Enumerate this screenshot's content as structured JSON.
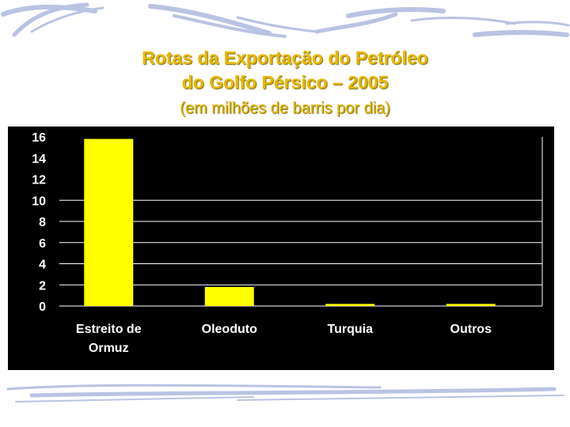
{
  "slide": {
    "title_line1": "Rotas da Exportação do Petróleo",
    "title_line2": "do Golfo Pérsico – 2005",
    "subtitle": "(em milhões de barris por dia)"
  },
  "colors": {
    "title": "#e8b800",
    "panel_background": "#000000",
    "bar": "#ffff00",
    "axis_text": "#ffffff",
    "gridline": "#ffffff",
    "decoration": "#b9c3e3"
  },
  "chart_data": {
    "type": "bar",
    "title": "",
    "xlabel": "",
    "ylabel": "",
    "categories": [
      "Estreito de Ormuz",
      "Oleoduto",
      "Turquia",
      "Outros"
    ],
    "category_lines": [
      [
        "Estreito de",
        "Ormuz"
      ],
      [
        "Oleoduto"
      ],
      [
        "Turquia"
      ],
      [
        "Outros"
      ]
    ],
    "values": [
      15.8,
      1.8,
      0.2,
      0.2
    ],
    "ylim": [
      0,
      16
    ],
    "yticks": [
      0,
      2,
      4,
      6,
      8,
      10,
      12,
      14,
      16
    ],
    "grid": true,
    "legend": "none"
  }
}
